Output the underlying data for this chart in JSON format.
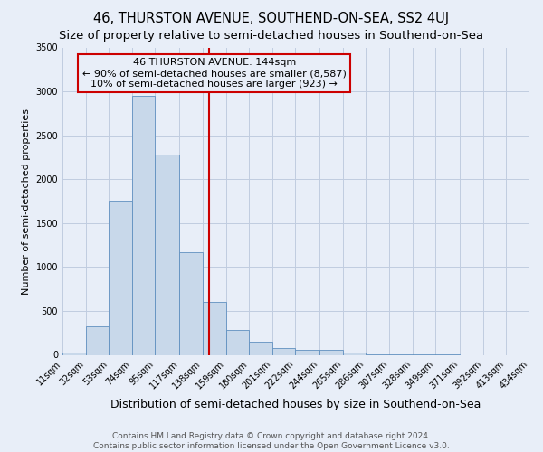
{
  "title": "46, THURSTON AVENUE, SOUTHEND-ON-SEA, SS2 4UJ",
  "subtitle": "Size of property relative to semi-detached houses in Southend-on-Sea",
  "xlabel": "Distribution of semi-detached houses by size in Southend-on-Sea",
  "ylabel": "Number of semi-detached properties",
  "footer_line1": "Contains HM Land Registry data © Crown copyright and database right 2024.",
  "footer_line2": "Contains public sector information licensed under the Open Government Licence v3.0.",
  "bin_edges": [
    11,
    32,
    53,
    74,
    95,
    117,
    138,
    159,
    180,
    201,
    222,
    244,
    265,
    286,
    307,
    328,
    349,
    371,
    392,
    413,
    434
  ],
  "bar_heights": [
    30,
    320,
    1750,
    2950,
    2280,
    1170,
    600,
    280,
    145,
    80,
    55,
    55,
    30,
    5,
    2,
    1,
    1,
    0,
    0,
    0
  ],
  "bar_color": "#c8d8ea",
  "bar_edge_color": "#6090c0",
  "property_size": 144,
  "vline_color": "#cc0000",
  "ann_line1": "46 THURSTON AVENUE: 144sqm",
  "ann_line2": "← 90% of semi-detached houses are smaller (8,587)",
  "ann_line3": "10% of semi-detached houses are larger (923) →",
  "annotation_box_color": "#cc0000",
  "ylim": [
    0,
    3500
  ],
  "yticks": [
    0,
    500,
    1000,
    1500,
    2000,
    2500,
    3000,
    3500
  ],
  "grid_color": "#c0cce0",
  "bg_color": "#e8eef8",
  "title_fontsize": 10.5,
  "subtitle_fontsize": 9.5,
  "ylabel_fontsize": 8,
  "xlabel_fontsize": 9,
  "tick_fontsize": 7,
  "ann_fontsize": 8,
  "footer_fontsize": 6.5
}
